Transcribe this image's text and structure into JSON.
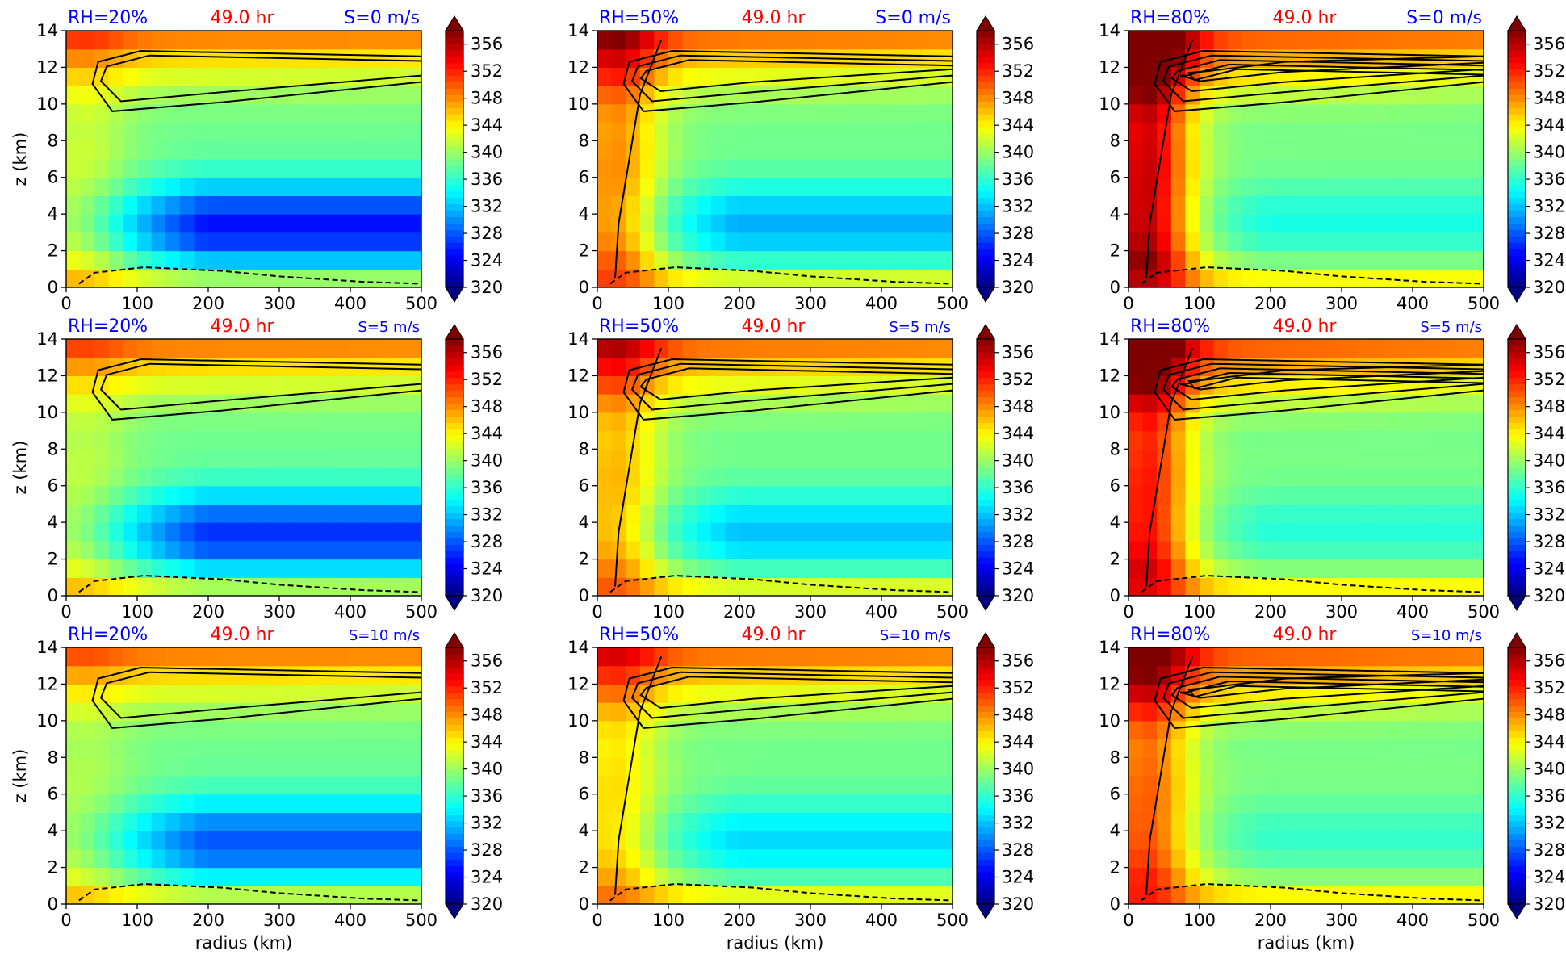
{
  "figure": {
    "colors": {
      "rh": "#0000ff",
      "time": "#ff0000",
      "shear": "#0000ff",
      "axis": "#000000",
      "contour": "#000000"
    },
    "colorbar": {
      "ticks": [
        "356",
        "352",
        "348",
        "344",
        "340",
        "336",
        "332",
        "328",
        "324",
        "320"
      ],
      "range": [
        320,
        358
      ],
      "colormap": "jet",
      "extend": "both"
    },
    "xaxis": {
      "ticks": [
        "0",
        "100",
        "200",
        "300",
        "400",
        "500"
      ],
      "label": "radius (km)"
    },
    "yaxis": {
      "ticks": [
        "0",
        "2",
        "4",
        "6",
        "8",
        "10",
        "12",
        "14"
      ],
      "label": "z (km)"
    }
  },
  "chart_data": [
    {
      "type": "heatmap",
      "rh": "RH=20%",
      "time": "49.0 hr",
      "shear": "S=0 m/s",
      "xlim": [
        0,
        500
      ],
      "ylim": [
        0,
        14
      ],
      "colorbar_range": [
        320,
        358
      ]
    },
    {
      "type": "heatmap",
      "rh": "RH=50%",
      "time": "49.0 hr",
      "shear": "S=0 m/s",
      "xlim": [
        0,
        500
      ],
      "ylim": [
        0,
        14
      ],
      "colorbar_range": [
        320,
        358
      ]
    },
    {
      "type": "heatmap",
      "rh": "RH=80%",
      "time": "49.0 hr",
      "shear": "S=0 m/s",
      "xlim": [
        0,
        500
      ],
      "ylim": [
        0,
        14
      ],
      "colorbar_range": [
        320,
        358
      ]
    },
    {
      "type": "heatmap",
      "rh": "RH=20%",
      "time": "49.0 hr",
      "shear": "S=5 m/s",
      "xlim": [
        0,
        500
      ],
      "ylim": [
        0,
        14
      ],
      "colorbar_range": [
        320,
        358
      ]
    },
    {
      "type": "heatmap",
      "rh": "RH=50%",
      "time": "49.0 hr",
      "shear": "S=5 m/s",
      "xlim": [
        0,
        500
      ],
      "ylim": [
        0,
        14
      ],
      "colorbar_range": [
        320,
        358
      ]
    },
    {
      "type": "heatmap",
      "rh": "RH=80%",
      "time": "49.0 hr",
      "shear": "S=5 m/s",
      "xlim": [
        0,
        500
      ],
      "ylim": [
        0,
        14
      ],
      "colorbar_range": [
        320,
        358
      ]
    },
    {
      "type": "heatmap",
      "rh": "RH=20%",
      "time": "49.0 hr",
      "shear": "S=10 m/s",
      "xlim": [
        0,
        500
      ],
      "ylim": [
        0,
        14
      ],
      "colorbar_range": [
        320,
        358
      ]
    },
    {
      "type": "heatmap",
      "rh": "RH=50%",
      "time": "49.0 hr",
      "shear": "S=10 m/s",
      "xlim": [
        0,
        500
      ],
      "ylim": [
        0,
        14
      ],
      "colorbar_range": [
        320,
        358
      ]
    },
    {
      "type": "heatmap",
      "rh": "RH=80%",
      "time": "49.0 hr",
      "shear": "S=10 m/s",
      "xlim": [
        0,
        500
      ],
      "ylim": [
        0,
        14
      ],
      "colorbar_range": [
        320,
        358
      ]
    }
  ]
}
